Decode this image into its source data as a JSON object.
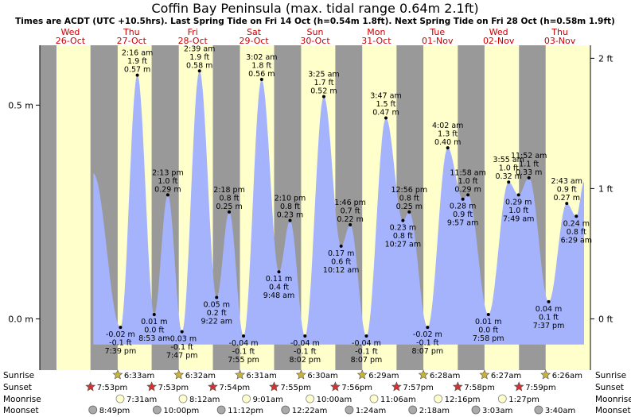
{
  "chart_data": {
    "type": "area",
    "title": "Coffin Bay Peninsula (max. tidal range 0.64m 2.1ft)",
    "subtitle": "Times are ACDT (UTC +10.5hrs). Last Spring Tide on Fri 14 Oct (h=0.54m 1.8ft). Next Spring Tide on Fri 28 Oct (h=0.58m 1.9ft)",
    "y_left_ticks": [
      {
        "v": 0.0,
        "label": "0.0 m"
      },
      {
        "v": 0.5,
        "label": "0.5 m"
      }
    ],
    "y_right_ticks": [
      {
        "v": 0.0,
        "label": "0 ft"
      },
      {
        "v": 0.3048,
        "label": "1 ft"
      },
      {
        "v": 0.6096,
        "label": "2 ft"
      }
    ],
    "ylim": [
      -0.12,
      0.64
    ],
    "day_headers": [
      {
        "day": "Wed",
        "date": "26-Oct",
        "t": 12
      },
      {
        "day": "Thu",
        "date": "27-Oct",
        "t": 36
      },
      {
        "day": "Fri",
        "date": "28-Oct",
        "t": 60
      },
      {
        "day": "Sat",
        "date": "29-Oct",
        "t": 84
      },
      {
        "day": "Sun",
        "date": "30-Oct",
        "t": 108
      },
      {
        "day": "Mon",
        "date": "31-Oct",
        "t": 132
      },
      {
        "day": "Tue",
        "date": "01-Nov",
        "t": 156
      },
      {
        "day": "Wed",
        "date": "02-Nov",
        "t": 180
      },
      {
        "day": "Thu",
        "date": "03-Nov",
        "t": 204
      }
    ],
    "tides": [
      {
        "t": 21.0,
        "h": 0.34,
        "lines": []
      },
      {
        "t": 31.65,
        "h": -0.02,
        "lines": [
          "-0.02 m",
          "-0.1 ft",
          "7:39 pm"
        ]
      },
      {
        "t": 38.27,
        "h": 0.57,
        "lines": [
          "2:16 am",
          "1.9 ft",
          "0.57 m"
        ]
      },
      {
        "t": 44.88,
        "h": 0.01,
        "lines": [
          "0.01 m",
          "0.0 ft",
          "8:53 am"
        ]
      },
      {
        "t": 50.22,
        "h": 0.29,
        "lines": [
          "2:13 pm",
          "1.0 ft",
          "0.29 m"
        ]
      },
      {
        "t": 55.78,
        "h": -0.03,
        "lines": [
          "-0.03 m",
          "-0.1 ft",
          "7:47 pm"
        ]
      },
      {
        "t": 62.65,
        "h": 0.58,
        "lines": [
          "2:39 am",
          "1.9 ft",
          "0.58 m"
        ]
      },
      {
        "t": 69.37,
        "h": 0.05,
        "lines": [
          "0.05 m",
          "0.2 ft",
          "9:22 am"
        ]
      },
      {
        "t": 74.3,
        "h": 0.25,
        "lines": [
          "2:18 pm",
          "0.8 ft",
          "0.25 m"
        ]
      },
      {
        "t": 79.92,
        "h": -0.04,
        "lines": [
          "-0.04 m",
          "-0.1 ft",
          "7:55 pm"
        ]
      },
      {
        "t": 87.03,
        "h": 0.56,
        "lines": [
          "3:02 am",
          "1.8 ft",
          "0.56 m"
        ]
      },
      {
        "t": 93.8,
        "h": 0.11,
        "lines": [
          "0.11 m",
          "0.4 ft",
          "9:48 am"
        ]
      },
      {
        "t": 98.17,
        "h": 0.23,
        "lines": [
          "2:10 pm",
          "0.8 ft",
          "0.23 m"
        ]
      },
      {
        "t": 104.03,
        "h": -0.04,
        "lines": [
          "-0.04 m",
          "-0.1 ft",
          "8:02 pm"
        ]
      },
      {
        "t": 111.42,
        "h": 0.52,
        "lines": [
          "3:25 am",
          "1.7 ft",
          "0.52 m"
        ]
      },
      {
        "t": 118.2,
        "h": 0.17,
        "lines": [
          "0.17 m",
          "0.6 ft",
          "10:12 am"
        ]
      },
      {
        "t": 121.77,
        "h": 0.22,
        "lines": [
          "1:46 pm",
          "0.7 ft",
          "0.22 m"
        ]
      },
      {
        "t": 128.12,
        "h": -0.04,
        "lines": [
          "-0.04 m",
          "-0.1 ft",
          "8:07 pm"
        ]
      },
      {
        "t": 135.78,
        "h": 0.47,
        "lines": [
          "3:47 am",
          "1.5 ft",
          "0.47 m"
        ]
      },
      {
        "t": 142.45,
        "h": 0.23,
        "lines": [
          "0.23 m",
          "0.8 ft",
          "10:27 am"
        ]
      },
      {
        "t": 144.93,
        "h": 0.25,
        "lines": [
          "12:56 pm",
          "0.8 ft",
          "0.25 m"
        ]
      },
      {
        "t": 152.12,
        "h": -0.02,
        "lines": [
          "-0.02 m",
          "-0.1 ft",
          "8:07 pm"
        ]
      },
      {
        "t": 160.03,
        "h": 0.4,
        "lines": [
          "4:02 am",
          "1.3 ft",
          "0.40 m"
        ]
      },
      {
        "t": 167.97,
        "h": 0.29,
        "lines": [
          "11:58 am",
          "1.0 ft",
          "0.29 m"
        ]
      },
      {
        "t": 165.95,
        "h": 0.28,
        "lines": [
          "0.28 m",
          "0.9 ft",
          "9:57 am"
        ]
      },
      {
        "t": 175.97,
        "h": 0.01,
        "lines": [
          "0.01 m",
          "0.0 ft",
          "7:58 pm"
        ]
      },
      {
        "t": 183.92,
        "h": 0.32,
        "lines": [
          "3:55 am",
          "1.0 ft",
          "0.32 m"
        ]
      },
      {
        "t": 187.82,
        "h": 0.29,
        "lines": [
          "0.29 m",
          "1.0 ft",
          "7:49 am"
        ]
      },
      {
        "t": 191.87,
        "h": 0.33,
        "lines": [
          "11:52 am",
          "1.1 ft",
          "0.33 m"
        ]
      },
      {
        "t": 199.62,
        "h": 0.04,
        "lines": [
          "0.04 m",
          "0.1 ft",
          "7:37 pm"
        ]
      },
      {
        "t": 206.72,
        "h": 0.27,
        "lines": [
          "2:43 am",
          "0.9 ft",
          "0.27 m"
        ]
      },
      {
        "t": 210.48,
        "h": 0.24,
        "lines": [
          "0.24 m",
          "0.8 ft",
          "6:29 am"
        ]
      },
      {
        "t": 213.5,
        "h": 0.32,
        "lines": []
      }
    ],
    "sun_rows": {
      "row_labels": [
        "Sunrise",
        "Sunset",
        "Moonrise",
        "Moonset"
      ],
      "sunrise": [
        {
          "t": 30.55,
          "label": "6:33am"
        },
        {
          "t": 54.53,
          "label": "6:32am"
        },
        {
          "t": 78.52,
          "label": "6:31am"
        },
        {
          "t": 102.5,
          "label": "6:30am"
        },
        {
          "t": 126.48,
          "label": "6:29am"
        },
        {
          "t": 150.47,
          "label": "6:28am"
        },
        {
          "t": 174.45,
          "label": "6:27am"
        },
        {
          "t": 198.43,
          "label": "6:26am"
        }
      ],
      "sunset": [
        {
          "t": 19.88,
          "label": "7:53pm"
        },
        {
          "t": 43.88,
          "label": "7:53pm"
        },
        {
          "t": 67.9,
          "label": "7:54pm"
        },
        {
          "t": 91.92,
          "label": "7:55pm"
        },
        {
          "t": 115.93,
          "label": "7:56pm"
        },
        {
          "t": 139.95,
          "label": "7:57pm"
        },
        {
          "t": 163.97,
          "label": "7:58pm"
        },
        {
          "t": 187.98,
          "label": "7:59pm"
        }
      ],
      "moonrise": [
        {
          "t": 31.52,
          "label": "7:31am"
        },
        {
          "t": 56.2,
          "label": "8:12am"
        },
        {
          "t": 81.02,
          "label": "9:01am"
        },
        {
          "t": 106.0,
          "label": "10:00am"
        },
        {
          "t": 131.1,
          "label": "11:06am"
        },
        {
          "t": 156.27,
          "label": "12:16pm"
        },
        {
          "t": 181.45,
          "label": "1:27pm"
        }
      ],
      "moonset": [
        {
          "t": 20.82,
          "label": "8:49pm"
        },
        {
          "t": 46.0,
          "label": "10:00pm"
        },
        {
          "t": 71.2,
          "label": "11:12pm"
        },
        {
          "t": 96.37,
          "label": "12:22am"
        },
        {
          "t": 121.4,
          "label": "1:24am"
        },
        {
          "t": 146.3,
          "label": "2:18am"
        },
        {
          "t": 171.05,
          "label": "3:03am"
        },
        {
          "t": 195.67,
          "label": "3:40am"
        }
      ]
    },
    "colors": {
      "tide_fill": "#a4b3fc",
      "day_band": "#ffffcc",
      "night_band": "#999999",
      "day_label": "#cc0000",
      "sunrise_star": "#c8b43c",
      "sunset_star": "#d23232",
      "moonrise": "#ffffcc",
      "moonset": "#aaaaaa"
    }
  }
}
